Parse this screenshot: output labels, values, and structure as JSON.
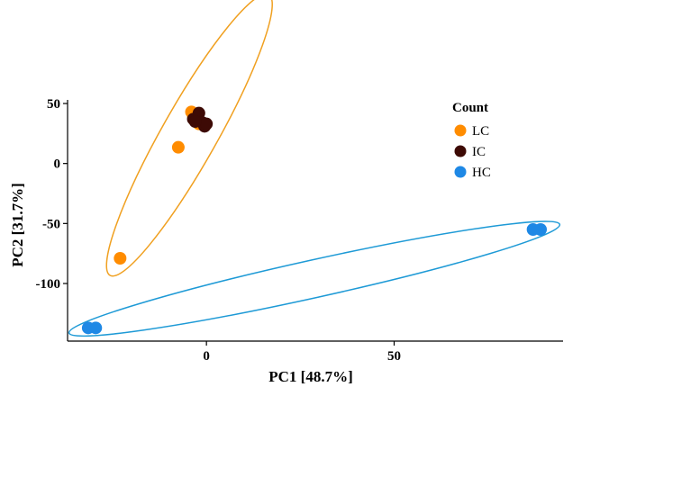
{
  "chart_data": {
    "type": "scatter",
    "title": "",
    "xlabel": "PC1 [48.7%]",
    "ylabel": "PC2 [31.7%]",
    "xlim": [
      -37,
      95
    ],
    "ylim": [
      -148,
      53
    ],
    "xticks": [
      0,
      50
    ],
    "yticks": [
      50,
      0,
      -50,
      -100
    ],
    "xtick_labels": [
      "0",
      "50"
    ],
    "ytick_labels": [
      "50",
      "0",
      "-50",
      "-100"
    ],
    "grid": false,
    "legend": {
      "title": "Count",
      "position": "top-right"
    },
    "series": [
      {
        "name": "LC",
        "color": "#ff8c00",
        "points": [
          [
            -23,
            -79
          ],
          [
            -7.5,
            13.5
          ],
          [
            -4,
            43
          ],
          [
            -2,
            33
          ],
          [
            -3.5,
            39
          ]
        ]
      },
      {
        "name": "IC",
        "color": "#3d0a05",
        "points": [
          [
            -3.5,
            37
          ],
          [
            -2,
            42
          ],
          [
            -1,
            34
          ],
          [
            -0.5,
            31
          ],
          [
            0,
            33
          ],
          [
            -3,
            35
          ]
        ]
      },
      {
        "name": "HC",
        "color": "#1e88e5",
        "points": [
          [
            -31.5,
            -137
          ],
          [
            -29.5,
            -137
          ],
          [
            87,
            -55
          ],
          [
            89,
            -55
          ]
        ]
      }
    ],
    "ellipses": [
      {
        "group": "LC",
        "color": "#f0a020"
      },
      {
        "group": "HC",
        "color": "#1e9ad6"
      }
    ]
  }
}
